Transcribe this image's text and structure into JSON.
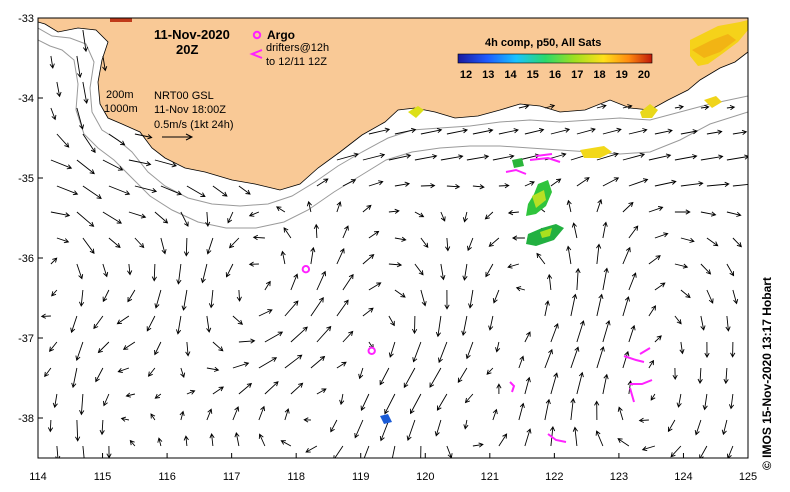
{
  "map": {
    "date_title": "11-Nov-2020",
    "time_title": "20Z",
    "argo_label": "Argo",
    "drifters_line1": "drifters@12h",
    "drifters_line2": "to 12/11 12Z",
    "depth_200": "200m",
    "depth_1000": "1000m",
    "product": "NRT00 GSL",
    "product_time": "11-Nov 18:00Z",
    "scale_label": "0.5m/s (1kt 24h)",
    "colorbar_title": "4h comp, p50, All Sats",
    "colorbar_ticks": [
      "12",
      "13",
      "14",
      "15",
      "16",
      "17",
      "18",
      "19",
      "20"
    ],
    "credit": "© IMOS 15-Nov-2020 13:17 Hobart",
    "colors": {
      "land": "#f9c996",
      "argo": "#ff22ff",
      "drifter": "#ff22ff"
    }
  },
  "axes": {
    "x_ticks": [
      "114",
      "115",
      "116",
      "117",
      "118",
      "119",
      "120",
      "121",
      "122",
      "123",
      "124",
      "125"
    ],
    "y_ticks": [
      "-33",
      "-34",
      "-35",
      "-36",
      "-37",
      "-38"
    ],
    "lon_range": [
      114,
      125
    ],
    "lat_range": [
      -38.5,
      -33
    ]
  },
  "argo_floats": [
    {
      "lon": 118.15,
      "lat": -36.14
    },
    {
      "lon": 119.17,
      "lat": -37.16
    }
  ]
}
